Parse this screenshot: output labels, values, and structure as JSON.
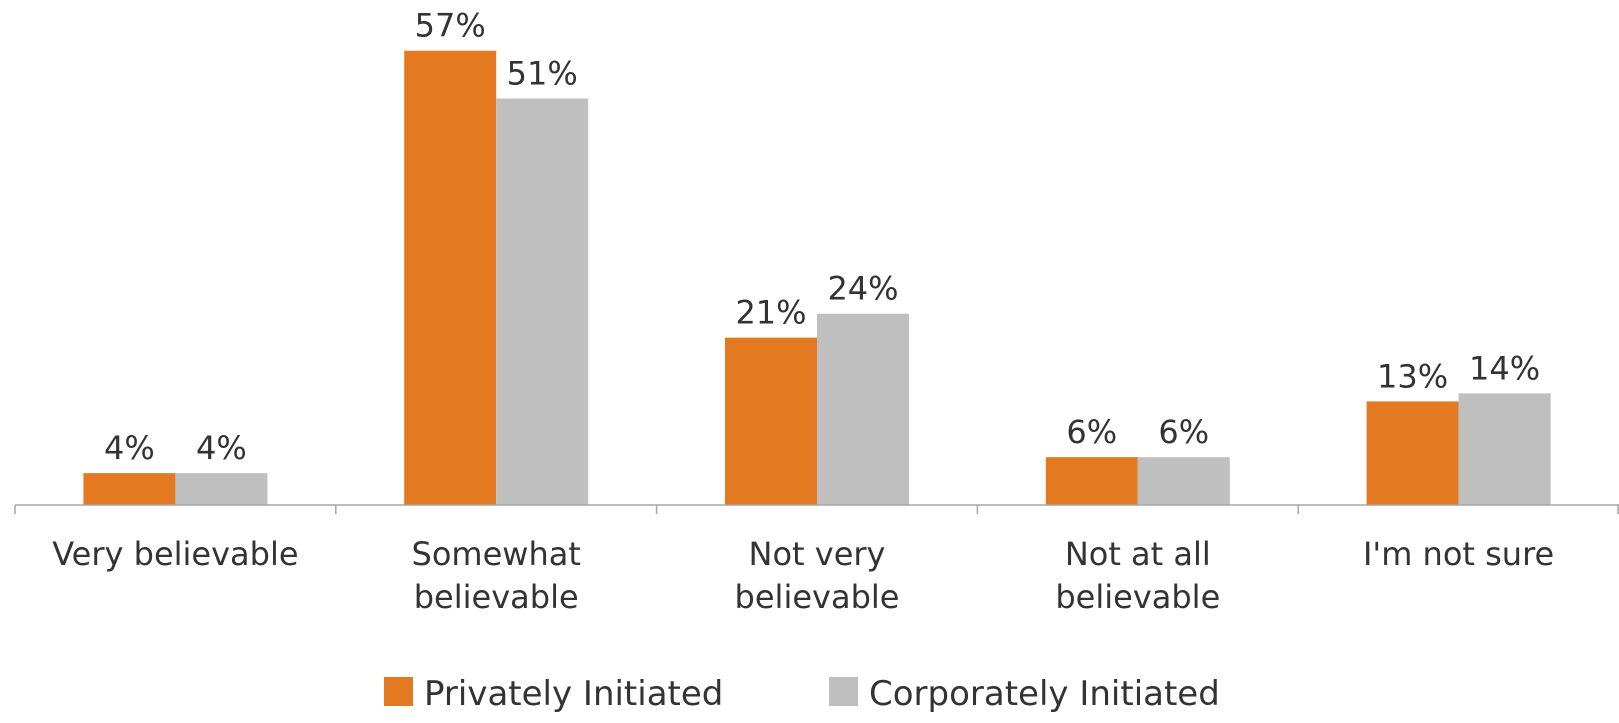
{
  "chart_data": {
    "type": "bar",
    "categories": [
      [
        "Very believable"
      ],
      [
        "Somewhat",
        "believable"
      ],
      [
        "Not very",
        "believable"
      ],
      [
        "Not at all",
        "believable"
      ],
      [
        "I'm not sure"
      ]
    ],
    "series": [
      {
        "name": "Privately Initiated",
        "color": "#E37A22",
        "values": [
          4,
          57,
          21,
          6,
          13
        ],
        "labels": [
          "4%",
          "57%",
          "21%",
          "6%",
          "13%"
        ]
      },
      {
        "name": "Corporately Initiated",
        "color": "#BFBFBF",
        "values": [
          4,
          51,
          24,
          6,
          14
        ],
        "labels": [
          "4%",
          "51%",
          "24%",
          "6%",
          "14%"
        ]
      }
    ],
    "title": "",
    "xlabel": "",
    "ylabel": "",
    "ylim": [
      0,
      60
    ],
    "grid": false,
    "legend_position": "bottom",
    "axis_color": "#A6A6A6"
  }
}
